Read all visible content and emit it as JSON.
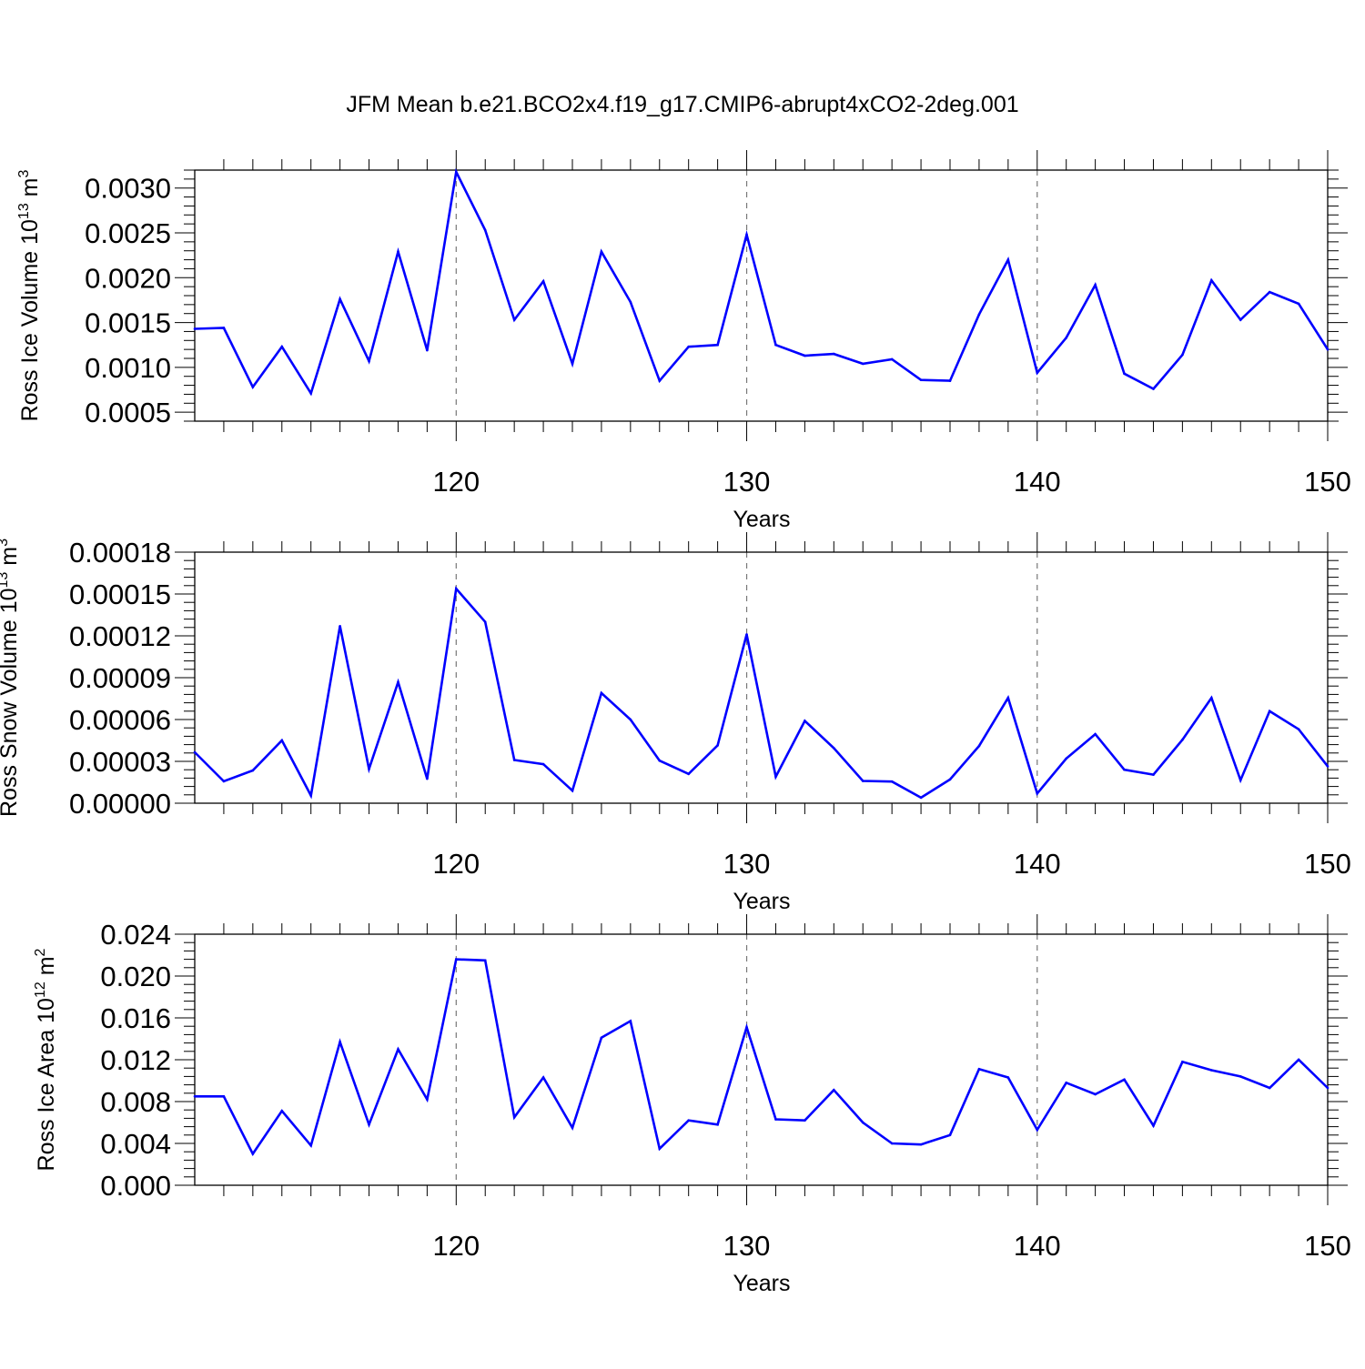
{
  "title": "JFM Mean b.e21.BCO2x4.f19_g17.CMIP6-abrupt4xCO2-2deg.001",
  "chart_data": [
    {
      "type": "line",
      "ylabel_main": "Ross Ice Volume 10",
      "ylabel_exp": "13",
      "ylabel_unit": " m",
      "ylabel_unit_exp": "3",
      "xlabel": "Years",
      "xlim": [
        111,
        150
      ],
      "ylim": [
        0.0004,
        0.0032
      ],
      "x_ticks": [
        "120",
        "130",
        "140",
        "150"
      ],
      "y_ticks": [
        "0.0005",
        "0.0010",
        "0.0015",
        "0.0020",
        "0.0025",
        "0.0030"
      ],
      "grid": "dashed vertical at major x ticks",
      "line_color": "#0000ff",
      "x": [
        111,
        112,
        113,
        114,
        115,
        116,
        117,
        118,
        119,
        120,
        121,
        122,
        123,
        124,
        125,
        126,
        127,
        128,
        129,
        130,
        131,
        132,
        133,
        134,
        135,
        136,
        137,
        138,
        139,
        140,
        141,
        142,
        143,
        144,
        145,
        146,
        147,
        148,
        149,
        150
      ],
      "values": [
        0.00143,
        0.00144,
        0.00078,
        0.00123,
        0.00071,
        0.00176,
        0.00107,
        0.00229,
        0.00119,
        0.00318,
        0.00253,
        0.00153,
        0.00196,
        0.00104,
        0.00229,
        0.00173,
        0.00085,
        0.00123,
        0.00125,
        0.00248,
        0.00125,
        0.00113,
        0.00115,
        0.00104,
        0.00109,
        0.00086,
        0.00085,
        0.00159,
        0.0022,
        0.00094,
        0.00133,
        0.00192,
        0.00093,
        0.00076,
        0.00114,
        0.00197,
        0.00153,
        0.00184,
        0.00171,
        0.0012
      ]
    },
    {
      "type": "line",
      "ylabel_main": "Ross Snow Volume 10",
      "ylabel_exp": "13",
      "ylabel_unit": " m",
      "ylabel_unit_exp": "3",
      "xlabel": "Years",
      "xlim": [
        111,
        150
      ],
      "ylim": [
        0.0,
        0.00018
      ],
      "x_ticks": [
        "120",
        "130",
        "140",
        "150"
      ],
      "y_ticks": [
        "0.00000",
        "0.00003",
        "0.00006",
        "0.00009",
        "0.00012",
        "0.00015",
        "0.00018"
      ],
      "grid": "dashed vertical at major x ticks",
      "line_color": "#0000ff",
      "x": [
        111,
        112,
        113,
        114,
        115,
        116,
        117,
        118,
        119,
        120,
        121,
        122,
        123,
        124,
        125,
        126,
        127,
        128,
        129,
        130,
        131,
        132,
        133,
        134,
        135,
        136,
        137,
        138,
        139,
        140,
        141,
        142,
        143,
        144,
        145,
        146,
        147,
        148,
        149,
        150
      ],
      "values": [
        3.65e-05,
        1.57e-05,
        2.35e-05,
        4.5e-05,
        5.5e-06,
        0.000127,
        2.45e-05,
        8.68e-05,
        1.75e-05,
        0.0001538,
        0.00013,
        3.1e-05,
        2.8e-05,
        9e-06,
        7.9e-05,
        6e-05,
        3.05e-05,
        2.1e-05,
        4.15e-05,
        0.000121,
        1.9e-05,
        5.9e-05,
        3.95e-05,
        1.6e-05,
        1.55e-05,
        4e-06,
        1.7e-05,
        4.1e-05,
        7.55e-05,
        7e-06,
        3.2e-05,
        4.95e-05,
        2.4e-05,
        2.05e-05,
        4.55e-05,
        7.55e-05,
        1.65e-05,
        6.6e-05,
        5.3e-05,
        2.65e-05
      ]
    },
    {
      "type": "line",
      "ylabel_main": "Ross Ice Area 10",
      "ylabel_exp": "12",
      "ylabel_unit": " m",
      "ylabel_unit_exp": "2",
      "xlabel": "Years",
      "xlim": [
        111,
        150
      ],
      "ylim": [
        0.0,
        0.024
      ],
      "x_ticks": [
        "120",
        "130",
        "140",
        "150"
      ],
      "y_ticks": [
        "0.000",
        "0.004",
        "0.008",
        "0.012",
        "0.016",
        "0.020",
        "0.024"
      ],
      "grid": "dashed vertical at major x ticks",
      "line_color": "#0000ff",
      "x": [
        111,
        112,
        113,
        114,
        115,
        116,
        117,
        118,
        119,
        120,
        121,
        122,
        123,
        124,
        125,
        126,
        127,
        128,
        129,
        130,
        131,
        132,
        133,
        134,
        135,
        136,
        137,
        138,
        139,
        140,
        141,
        142,
        143,
        144,
        145,
        146,
        147,
        148,
        149,
        150
      ],
      "values": [
        0.0085,
        0.0085,
        0.003,
        0.0071,
        0.0038,
        0.0137,
        0.0058,
        0.013,
        0.0082,
        0.0216,
        0.0215,
        0.0065,
        0.0103,
        0.0055,
        0.0141,
        0.0157,
        0.0035,
        0.0062,
        0.0058,
        0.0151,
        0.0063,
        0.0062,
        0.0091,
        0.006,
        0.004,
        0.0039,
        0.0048,
        0.0111,
        0.0103,
        0.0053,
        0.0098,
        0.0087,
        0.0101,
        0.0057,
        0.0118,
        0.011,
        0.0104,
        0.0093,
        0.012,
        0.0093
      ]
    }
  ]
}
